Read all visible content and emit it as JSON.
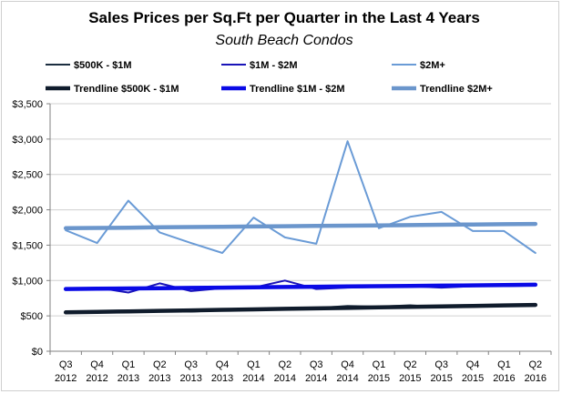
{
  "chart_data": {
    "type": "line",
    "title": "Sales Prices per Sq.Ft per Quarter in the Last 4 Years",
    "subtitle": "South Beach Condos",
    "xlabel": "",
    "ylabel": "",
    "ylim": [
      0,
      3500
    ],
    "y_ticks": [
      "$0",
      "$500",
      "$1,000",
      "$1,500",
      "$2,000",
      "$2,500",
      "$3,000",
      "$3,500"
    ],
    "y_tick_values": [
      0,
      500,
      1000,
      1500,
      2000,
      2500,
      3000,
      3500
    ],
    "grid": "horizontal",
    "legend_position": "top",
    "categories": [
      {
        "q": "Q3",
        "y": "2012"
      },
      {
        "q": "Q4",
        "y": "2012"
      },
      {
        "q": "Q1",
        "y": "2013"
      },
      {
        "q": "Q2",
        "y": "2013"
      },
      {
        "q": "Q3",
        "y": "2013"
      },
      {
        "q": "Q4",
        "y": "2013"
      },
      {
        "q": "Q1",
        "y": "2014"
      },
      {
        "q": "Q2",
        "y": "2014"
      },
      {
        "q": "Q3",
        "y": "2014"
      },
      {
        "q": "Q4",
        "y": "2014"
      },
      {
        "q": "Q1",
        "y": "2015"
      },
      {
        "q": "Q2",
        "y": "2015"
      },
      {
        "q": "Q3",
        "y": "2015"
      },
      {
        "q": "Q4",
        "y": "2015"
      },
      {
        "q": "Q1",
        "y": "2016"
      },
      {
        "q": "Q2",
        "y": "2016"
      }
    ],
    "series": [
      {
        "name": "$500K - $1M",
        "color": "#1c2e40",
        "kind": "data",
        "values": [
          560,
          550,
          565,
          575,
          560,
          580,
          590,
          600,
          610,
          640,
          630,
          650,
          620,
          650,
          640,
          660
        ]
      },
      {
        "name": "$1M - $2M",
        "color": "#1a14b8",
        "kind": "data",
        "values": [
          880,
          900,
          830,
          960,
          850,
          890,
          900,
          1000,
          880,
          900,
          910,
          920,
          900,
          920,
          920,
          930
        ]
      },
      {
        "name": "$2M+",
        "color": "#6a9bd6",
        "kind": "data",
        "values": [
          1710,
          1530,
          2130,
          1680,
          1530,
          1390,
          1890,
          1610,
          1520,
          2970,
          1740,
          1900,
          1970,
          1700,
          1700,
          1390
        ]
      },
      {
        "name": "Trendline $500K - $1M",
        "color": "#101c2c",
        "kind": "trend",
        "values": [
          550,
          557,
          564,
          571,
          578,
          585,
          592,
          599,
          606,
          613,
          620,
          627,
          634,
          641,
          648,
          655
        ]
      },
      {
        "name": "Trendline $1M - $2M",
        "color": "#0a0ae6",
        "kind": "trend",
        "values": [
          880,
          884,
          888,
          892,
          896,
          900,
          904,
          908,
          912,
          916,
          920,
          924,
          928,
          932,
          936,
          940
        ]
      },
      {
        "name": "Trendline $2M+",
        "color": "#6b96cc",
        "kind": "trend",
        "values": [
          1740,
          1744,
          1748,
          1752,
          1756,
          1760,
          1764,
          1768,
          1772,
          1776,
          1780,
          1784,
          1788,
          1792,
          1796,
          1800
        ]
      }
    ]
  }
}
